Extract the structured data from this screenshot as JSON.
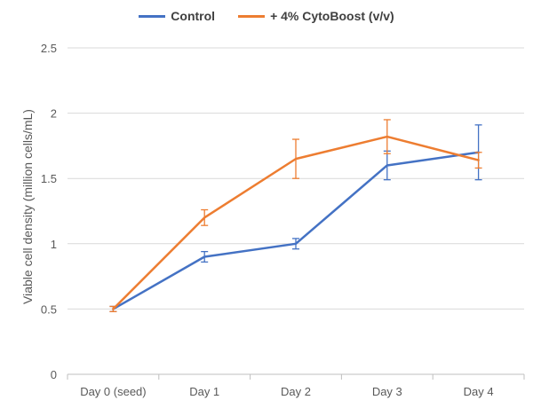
{
  "chart_data": {
    "type": "line",
    "title": "",
    "xlabel": "",
    "ylabel": "Viable cell density (million cells/mL)",
    "categories": [
      "Day 0 (seed)",
      "Day 1",
      "Day 2",
      "Day 3",
      "Day 4"
    ],
    "ylim": [
      0,
      2.5
    ],
    "yticks": [
      0,
      0.5,
      1,
      1.5,
      2,
      2.5
    ],
    "ytick_labels": [
      "0",
      "0.5",
      "1",
      "1.5",
      "2",
      "2.5"
    ],
    "grid": true,
    "legend_position": "top",
    "series": [
      {
        "name": "Control",
        "color": "#4472C4",
        "values": [
          0.5,
          0.9,
          1.0,
          1.6,
          1.7
        ],
        "error": [
          0.02,
          0.04,
          0.04,
          0.11,
          0.21
        ]
      },
      {
        "name": "+ 4% CytoBoost (v/v)",
        "color": "#ED7D31",
        "values": [
          0.5,
          1.2,
          1.65,
          1.82,
          1.64
        ],
        "error": [
          0.02,
          0.06,
          0.15,
          0.13,
          0.06
        ]
      }
    ]
  }
}
